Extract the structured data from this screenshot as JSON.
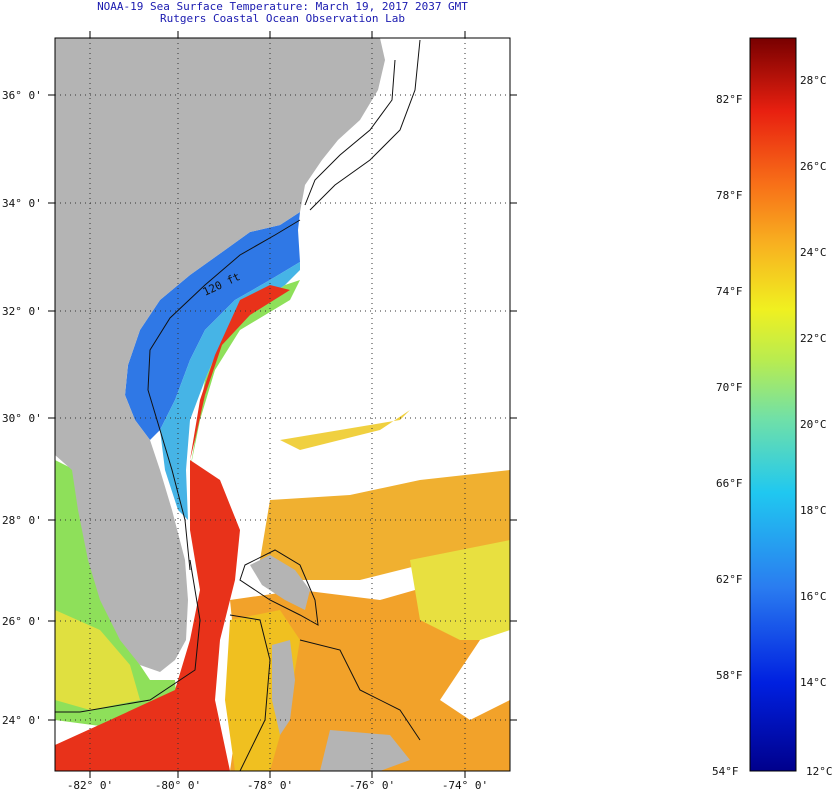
{
  "header": {
    "title_line1": "NOAA-19 Sea Surface Temperature:  March 19, 2017 2037 GMT",
    "title_line2": "Rutgers Coastal Ocean Observation Lab"
  },
  "map": {
    "lat_labels": [
      "36° 0'",
      "34° 0'",
      "32° 0'",
      "30° 0'",
      "28° 0'",
      "26° 0'",
      "24° 0'"
    ],
    "lon_labels": [
      "-82° 0'",
      "-80° 0'",
      "-78° 0'",
      "-76° 0'",
      "-74° 0'"
    ],
    "contour_label": "120 ft",
    "colors": {
      "land": "#b4b4b4",
      "cloud": "#ffffff",
      "gulf_stream": "#e8321a",
      "shelf_cold": "#2f78e6",
      "shelf_cool": "#46b4e6",
      "sargasso": "#f2a22a",
      "gulf_water": "#e8e040"
    }
  },
  "colorbar": {
    "fahrenheit_labels": [
      "82°F",
      "78°F",
      "74°F",
      "70°F",
      "66°F",
      "62°F",
      "58°F",
      "54°F"
    ],
    "celsius_labels": [
      "28°C",
      "26°C",
      "24°C",
      "22°C",
      "20°C",
      "18°C",
      "16°C",
      "14°C",
      "12°C"
    ],
    "range_f": [
      54,
      85
    ],
    "range_c": [
      12,
      29.4
    ]
  }
}
